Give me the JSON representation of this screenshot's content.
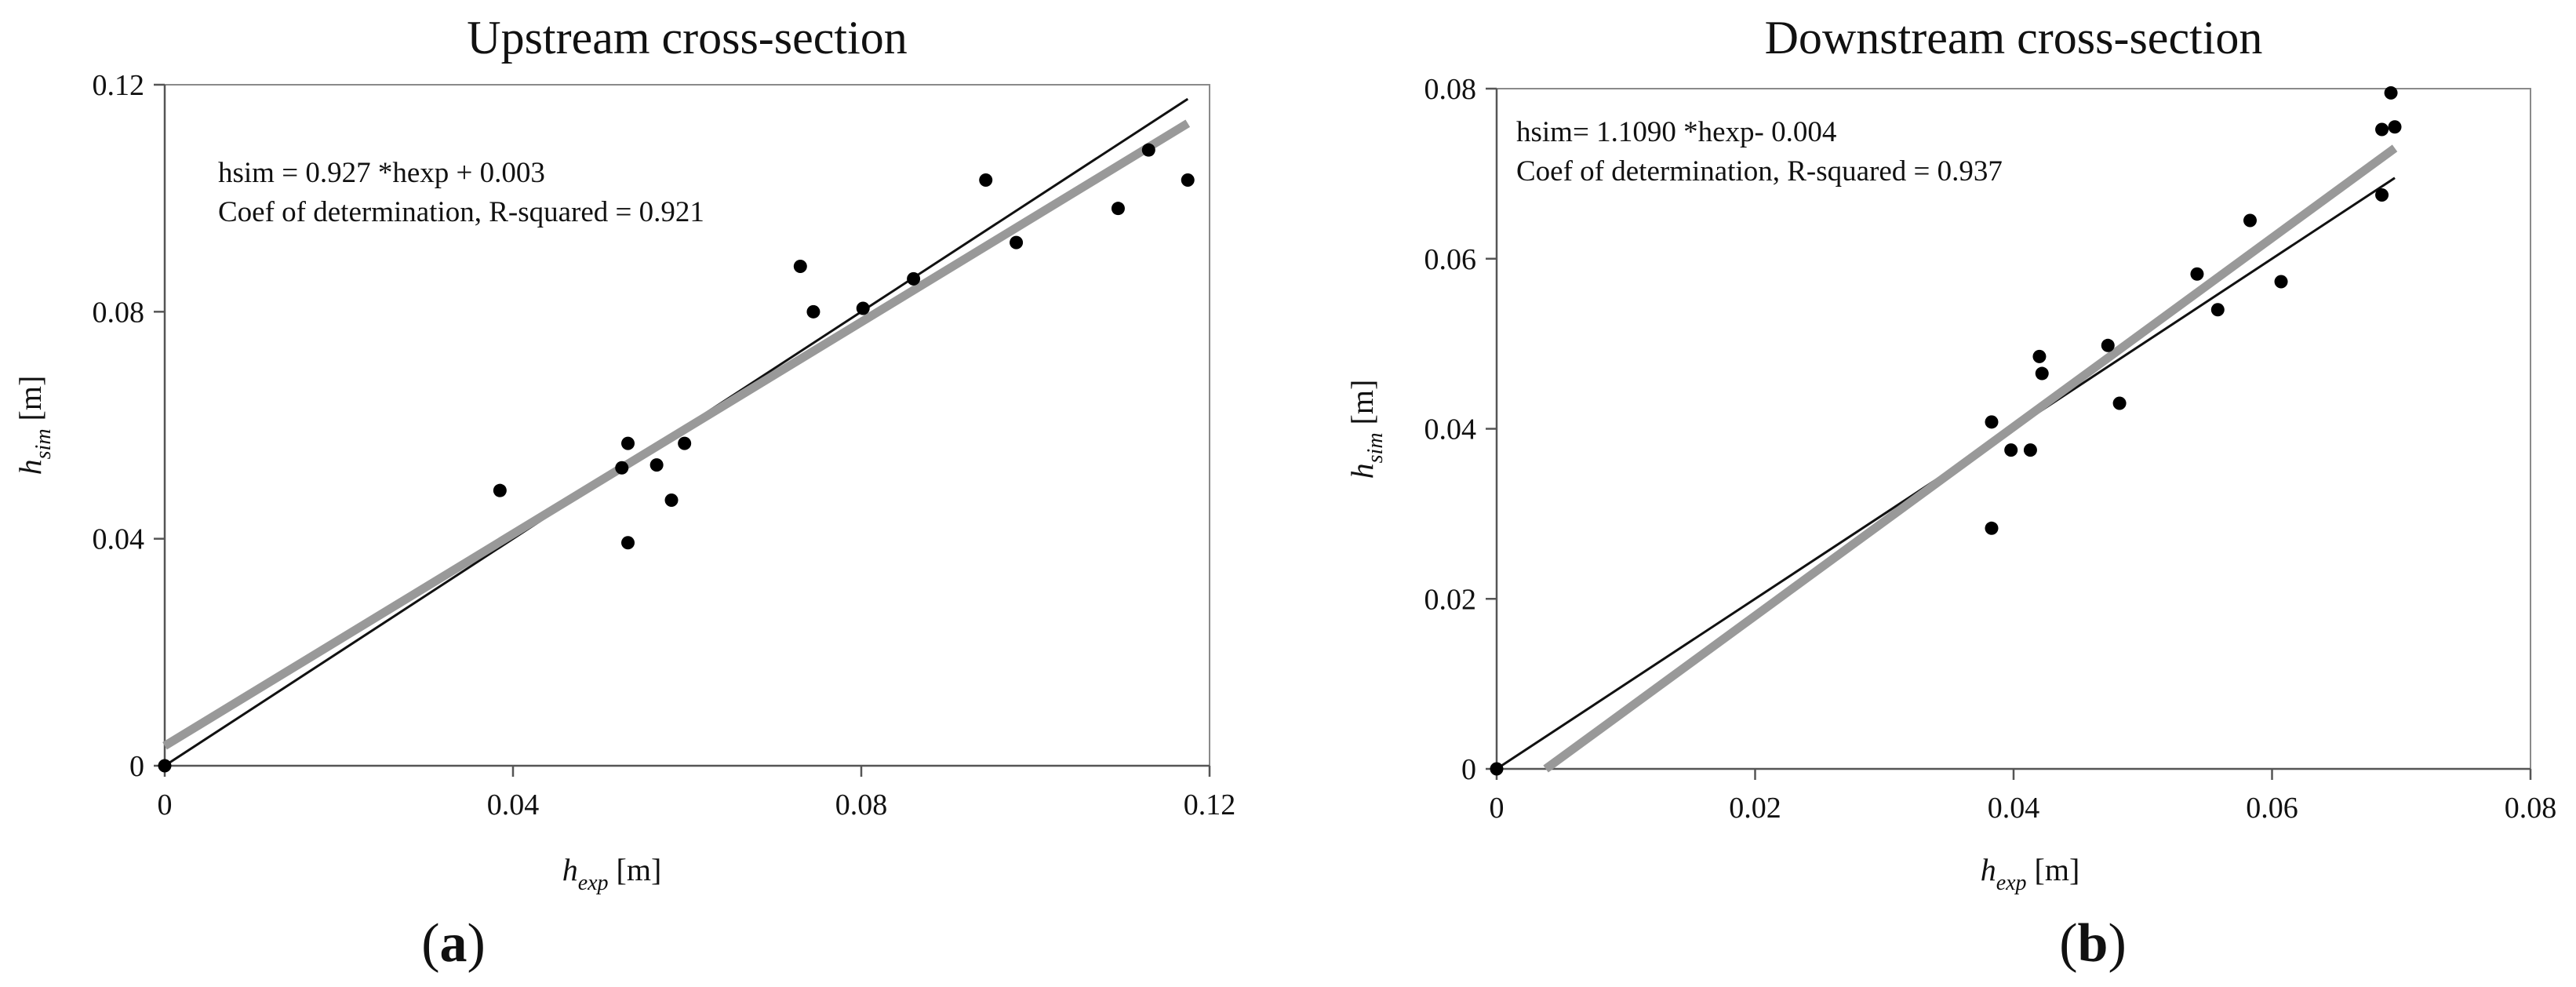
{
  "chart_data": [
    {
      "type": "scatter",
      "panel_label": "a",
      "title": "Upstream cross-section",
      "xlabel": {
        "main": "h",
        "sub": "exp",
        "unit": "[m]"
      },
      "ylabel": {
        "main": "h",
        "sub": "sim",
        "unit": "[m]"
      },
      "xlim": [
        0,
        0.12
      ],
      "ylim": [
        0,
        0.12
      ],
      "x_ticks": [
        0,
        0.04,
        0.08,
        0.12
      ],
      "x_tick_labels": [
        "0",
        "0.04",
        "0.08",
        "0.12"
      ],
      "y_ticks": [
        0,
        0.04,
        0.08,
        0.12
      ],
      "y_tick_labels": [
        "0",
        "0.04",
        "0.08",
        "0.12"
      ],
      "annotation": [
        "hsim = 0.927 *hexp + 0.003",
        "Coef of determination, R-squared = 0.921"
      ],
      "points": [
        [
          0,
          0
        ],
        [
          0.0385,
          0.0485
        ],
        [
          0.0525,
          0.0525
        ],
        [
          0.0532,
          0.0568
        ],
        [
          0.0532,
          0.0393
        ],
        [
          0.0565,
          0.053
        ],
        [
          0.0582,
          0.0468
        ],
        [
          0.0597,
          0.0568
        ],
        [
          0.073,
          0.088
        ],
        [
          0.0745,
          0.08
        ],
        [
          0.0802,
          0.0806
        ],
        [
          0.086,
          0.0858
        ],
        [
          0.0943,
          0.1032
        ],
        [
          0.0978,
          0.0922
        ],
        [
          0.1095,
          0.0982
        ],
        [
          0.113,
          0.1085
        ],
        [
          0.1175,
          0.1032
        ]
      ],
      "lines": [
        {
          "name": "1:1 line",
          "color": "#111111",
          "x": [
            0,
            0.1175
          ],
          "y": [
            0,
            0.1175
          ]
        },
        {
          "name": "regression",
          "color": "#999999",
          "x": [
            0,
            0.1175
          ],
          "y": [
            0.0035,
            0.1132
          ]
        }
      ]
    },
    {
      "type": "scatter",
      "panel_label": "b",
      "title": "Downstream cross-section",
      "xlabel": {
        "main": "h",
        "sub": "exp",
        "unit": "[m]"
      },
      "ylabel": {
        "main": "h",
        "sub": "sim",
        "unit": "[m]"
      },
      "xlim": [
        0,
        0.08
      ],
      "ylim": [
        0,
        0.08
      ],
      "x_ticks": [
        0,
        0.02,
        0.04,
        0.06,
        0.08
      ],
      "x_tick_labels": [
        "0",
        "0.02",
        "0.04",
        "0.06",
        "0.08"
      ],
      "y_ticks": [
        0,
        0.02,
        0.04,
        0.06,
        0.08
      ],
      "y_tick_labels": [
        "0",
        "0.02",
        "0.04",
        "0.06",
        "0.08"
      ],
      "annotation": [
        "hsim= 1.1090 *hexp- 0.004",
        "Coef of determination, R-squared = 0.937"
      ],
      "points": [
        [
          0,
          0
        ],
        [
          0.0383,
          0.0408
        ],
        [
          0.0383,
          0.0283
        ],
        [
          0.0398,
          0.0375
        ],
        [
          0.0413,
          0.0375
        ],
        [
          0.042,
          0.0485
        ],
        [
          0.0422,
          0.0465
        ],
        [
          0.0473,
          0.0498
        ],
        [
          0.0482,
          0.043
        ],
        [
          0.0542,
          0.0582
        ],
        [
          0.0558,
          0.054
        ],
        [
          0.0583,
          0.0645
        ],
        [
          0.0607,
          0.0573
        ],
        [
          0.0685,
          0.0675
        ],
        [
          0.0685,
          0.0752
        ],
        [
          0.0692,
          0.0795
        ],
        [
          0.0695,
          0.0755
        ]
      ],
      "lines": [
        {
          "name": "1:1 line",
          "color": "#111111",
          "x": [
            0,
            0.0695
          ],
          "y": [
            0,
            0.0695
          ]
        },
        {
          "name": "regression",
          "color": "#999999",
          "x": [
            0.0038,
            0.0695
          ],
          "y": [
            0,
            0.073
          ]
        }
      ]
    }
  ]
}
